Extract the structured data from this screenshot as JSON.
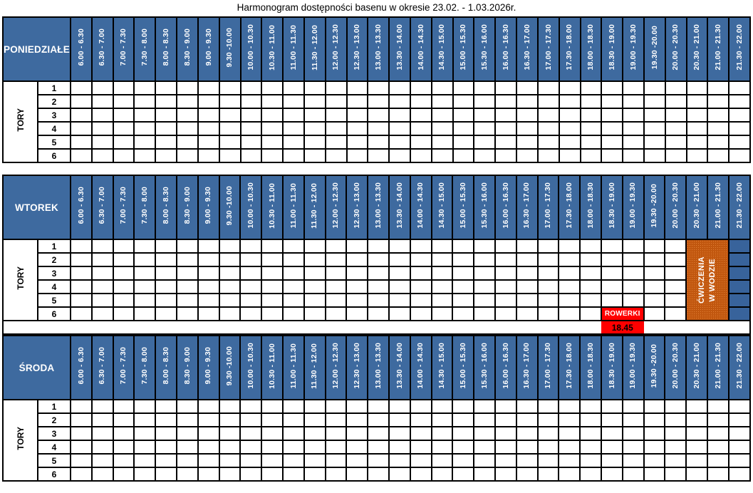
{
  "title": "Harmonogram dostępności basenu w okresie 23.02. - 1.03.2026r.",
  "lanes_label": "TORY",
  "lane_numbers": [
    "1",
    "2",
    "3",
    "4",
    "5",
    "6"
  ],
  "time_slots": [
    "6.00 - 6.30",
    "6.30 - 7.00",
    "7.00 - 7.30",
    "7.30 - 8.00",
    "8.00 - 8.30",
    "8.30 - 9.00",
    "9.00 - 9.30",
    "9.30 -10.00",
    "10.00 - 10.30",
    "10.30 - 11.00",
    "11.00 - 11.30",
    "11.30 - 12.00",
    "12.00 - 12.30",
    "12.30 - 13.00",
    "13.00 - 13.30",
    "13.30 - 14.00",
    "14.00 - 14.30",
    "14.30 - 15.00",
    "15.00 - 15.30",
    "15.30 - 16.00",
    "16.00 - 16.30",
    "16.30 - 17.00",
    "17.00 - 17.30",
    "17.30 - 18.00",
    "18.00 - 18.30",
    "18.30 - 19.00",
    "19.00 - 19.30",
    "19.30 -20.00",
    "20.00 - 20.30",
    "20.30 - 21.00",
    "21.00 - 21.30",
    "21.30 - 22.00"
  ],
  "colors": {
    "header_blue": "#3E6A9F",
    "cell_blue": "#38639B",
    "event_orange": "#C1570F",
    "event_red": "#FF0000",
    "border": "#000000"
  },
  "days": [
    {
      "id": "poniedzialek",
      "label": "PONIEDZIAŁEK",
      "merged_blocks": [],
      "filled_cells": [],
      "footnote": null
    },
    {
      "id": "wtorek",
      "label": "WTOREK",
      "merged_blocks": [
        {
          "name": "cwiczenia-w-wodzie-block",
          "style": "orange",
          "row": 1,
          "col": 30,
          "row_span": 6,
          "col_span": 2,
          "lines": [
            "ĆWICZENIA",
            "W WODZIE"
          ]
        },
        {
          "name": "rowerki-block",
          "style": "red",
          "row": 6,
          "col": 26,
          "row_span": 1,
          "col_span": 2,
          "lines": [
            "ROWERKI"
          ]
        }
      ],
      "filled_cells": [
        {
          "style": "blue",
          "col": 32,
          "rows": [
            1,
            2,
            3,
            4,
            5,
            6
          ]
        }
      ],
      "footnote": {
        "label": "18.45",
        "col": 26,
        "col_span": 2,
        "style": "red"
      }
    },
    {
      "id": "sroda",
      "label": "ŚRODA",
      "merged_blocks": [],
      "filled_cells": [],
      "footnote": null
    }
  ]
}
